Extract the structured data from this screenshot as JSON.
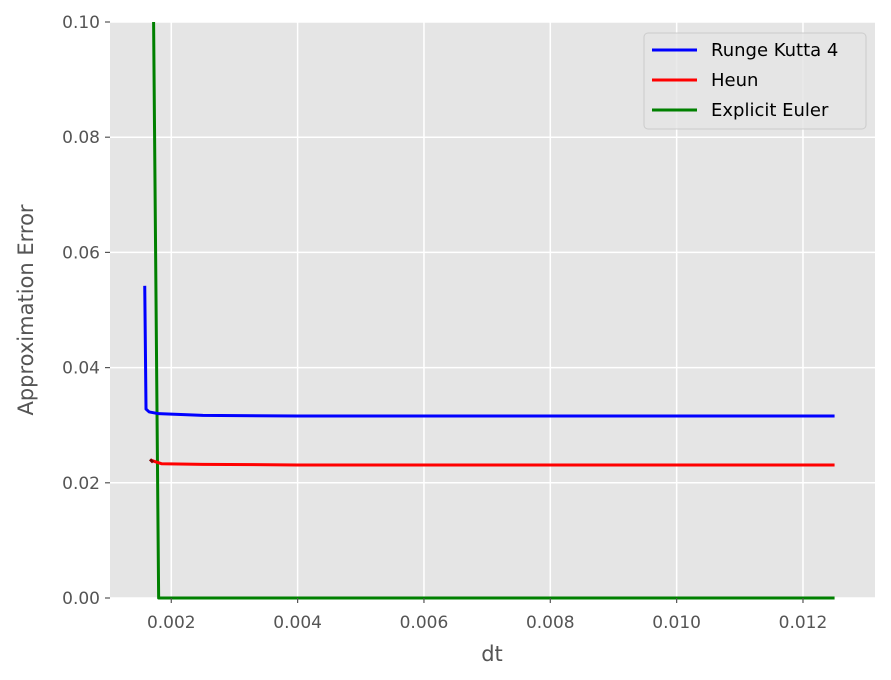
{
  "chart_data": {
    "type": "line",
    "xlabel": "dt",
    "ylabel": "Approximation Error",
    "xlim": [
      0.00103,
      0.01314
    ],
    "ylim": [
      0.0,
      0.1
    ],
    "xticks": [
      "0.002",
      "0.004",
      "0.006",
      "0.008",
      "0.010",
      "0.012"
    ],
    "yticks": [
      "0.00",
      "0.02",
      "0.04",
      "0.06",
      "0.08",
      "0.10"
    ],
    "grid": true,
    "legend_position": "top-right",
    "colors": {
      "plot_background": "#e5e5e5",
      "grid": "#ffffff"
    },
    "series": [
      {
        "name": "Runge Kutta 4",
        "color": "#0000ff",
        "x": [
          0.00158,
          0.0016,
          0.00165,
          0.0018,
          0.0025,
          0.004,
          0.006,
          0.008,
          0.01,
          0.0125
        ],
        "y": [
          0.0542,
          0.0328,
          0.0323,
          0.032,
          0.0317,
          0.0316,
          0.0316,
          0.0316,
          0.0316,
          0.0316
        ]
      },
      {
        "name": "Heun",
        "color": "#ff0000",
        "x": [
          0.00168,
          0.00185,
          0.0025,
          0.004,
          0.006,
          0.008,
          0.01,
          0.0125
        ],
        "y": [
          0.0239,
          0.0233,
          0.0232,
          0.0231,
          0.0231,
          0.0231,
          0.0231,
          0.0231
        ],
        "cap_color": "#800000"
      },
      {
        "name": "Explicit Euler",
        "color": "#008000",
        "x": [
          0.00172,
          0.0018,
          0.00181,
          0.0125
        ],
        "y": [
          0.1,
          0.0,
          0.0,
          0.0
        ]
      }
    ]
  }
}
